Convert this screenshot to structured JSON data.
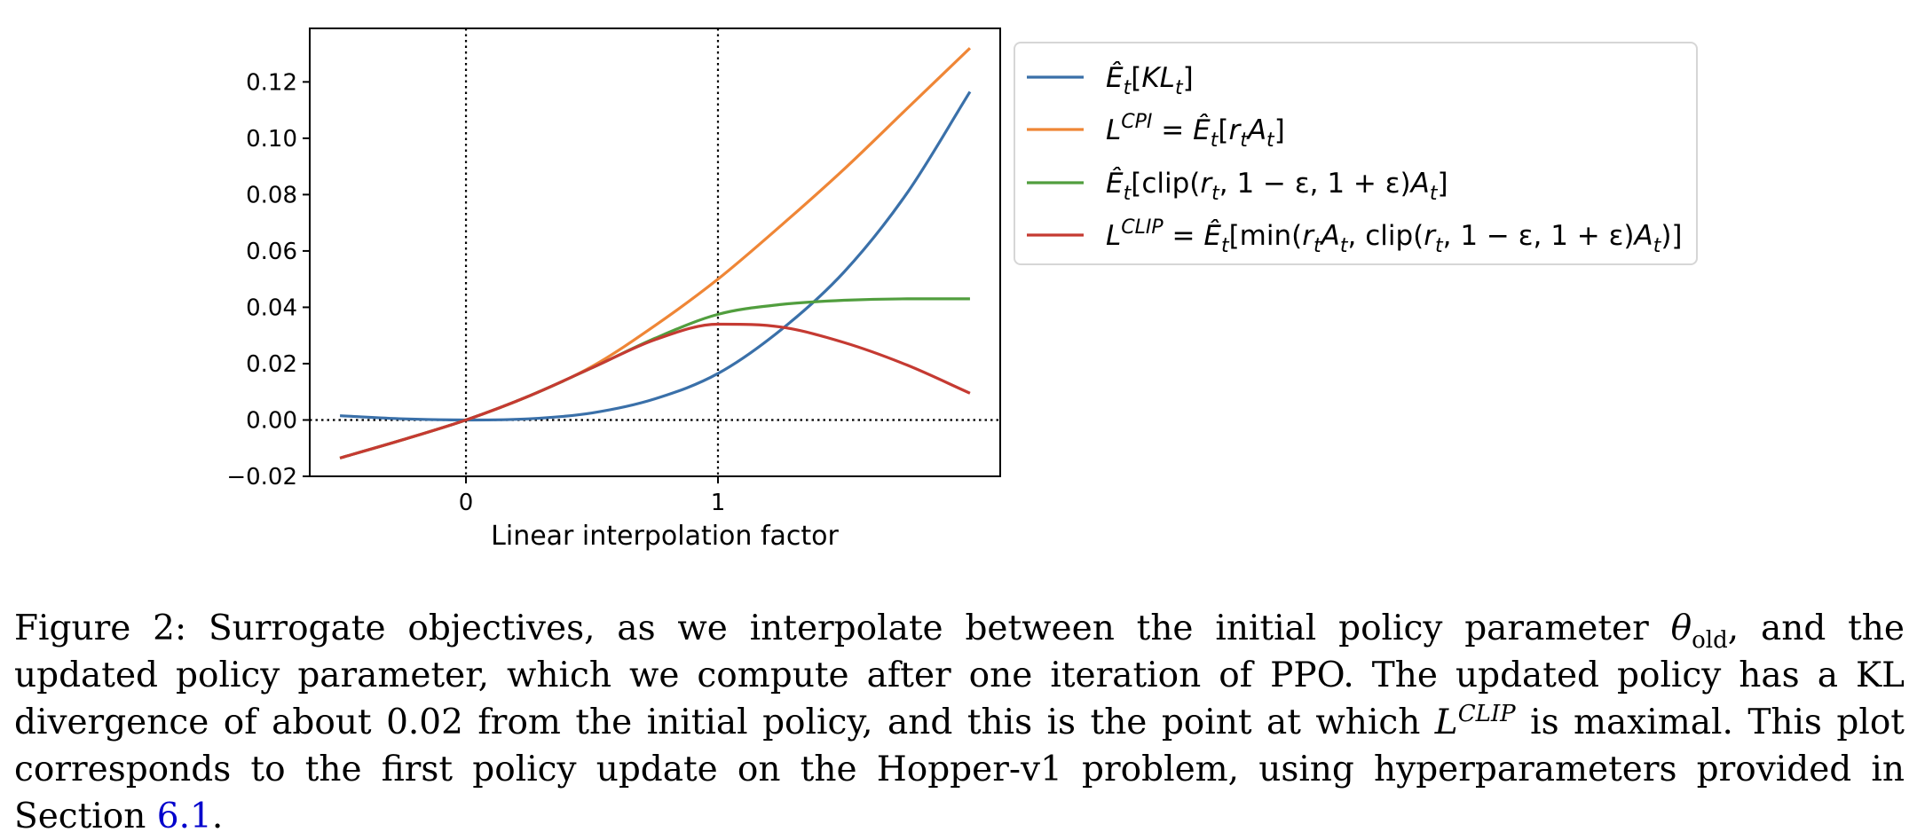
{
  "chart_data": {
    "type": "line",
    "xlabel": "Linear interpolation factor",
    "ylabel": "",
    "title": "",
    "xlim": [
      -0.62,
      2.12
    ],
    "ylim": [
      -0.02,
      0.139
    ],
    "x_ticks": [
      0,
      1
    ],
    "x_tick_labels": [
      "0",
      "1"
    ],
    "y_ticks": [
      -0.02,
      0.0,
      0.02,
      0.04,
      0.06,
      0.08,
      0.1,
      0.12
    ],
    "y_tick_labels": [
      "−0.02",
      "0.00",
      "0.02",
      "0.04",
      "0.06",
      "0.08",
      "0.10",
      "0.12"
    ],
    "reference_lines": [
      {
        "orientation": "vertical",
        "value": 0,
        "style": "dotted"
      },
      {
        "orientation": "vertical",
        "value": 1,
        "style": "dotted"
      },
      {
        "orientation": "horizontal",
        "value": 0,
        "style": "dotted"
      }
    ],
    "grid": false,
    "legend_placement": "outside-right-top",
    "x": [
      -0.5,
      -0.25,
      0.0,
      0.25,
      0.5,
      0.75,
      1.0,
      1.25,
      1.5,
      1.75,
      2.0
    ],
    "series": [
      {
        "name": "Ê_t[KL_t]",
        "color": "#3a70a9",
        "values": [
          0.0015,
          0.0004,
          0.0,
          0.0004,
          0.0025,
          0.0075,
          0.0165,
          0.032,
          0.0525,
          0.0805,
          0.1165
        ]
      },
      {
        "name": "L^CPI = Ê_t[r_t A_t]",
        "color": "#ef8636",
        "values": [
          -0.0135,
          -0.007,
          0.0,
          0.0085,
          0.019,
          0.0335,
          0.05,
          0.069,
          0.089,
          0.1105,
          0.132
        ]
      },
      {
        "name": "Ê_t[clip(r_t, 1 − ε, 1 + ε)A_t]",
        "color": "#519e3e",
        "values": [
          -0.0135,
          -0.007,
          0.0,
          0.0085,
          0.0185,
          0.029,
          0.0375,
          0.041,
          0.0425,
          0.043,
          0.043
        ]
      },
      {
        "name": "L^CLIP = Ê_t[min(r_t A_t, clip(r_t, 1 − ε, 1 + ε)A_t)]",
        "color": "#c53a32",
        "values": [
          -0.0135,
          -0.007,
          0.0,
          0.0085,
          0.0185,
          0.0285,
          0.034,
          0.033,
          0.0275,
          0.0195,
          0.0095
        ]
      }
    ]
  },
  "legend": {
    "e1_open": "[",
    "e1_kl": "KL",
    "e1_t": "t",
    "e1_close": "]",
    "e2_L": "L",
    "e2_sup": "CPI",
    "e2_eq": " = ",
    "e2_r": "r",
    "e2_A": "A",
    "e2_close": "]",
    "e3_clip": "[clip(",
    "e3_r": "r",
    "e3_mid": ", 1 − ε, 1 + ε)",
    "e3_A": "A",
    "e3_close": "]",
    "e4_L": "L",
    "e4_sup": "CLIP",
    "e4_eq": " = ",
    "e4_min": "[min(",
    "e4_r1": "r",
    "e4_A1": "A",
    "e4_clip": ", clip(",
    "e4_r2": "r",
    "e4_mid": ", 1 − ε, 1 + ε)",
    "e4_A2": "A",
    "e4_close": ")]",
    "hat_E": "Ê",
    "sub_t": "t"
  },
  "caption": {
    "lead": "Figure 2: Surrogate objectives, as we interpolate between the initial policy parameter ",
    "theta": "θ",
    "theta_sub": "old",
    "part2": ", and the updated policy parameter, which we compute after one iteration of PPO. The updated policy has a KL divergence of about 0.02 from the initial policy, and this is the point at which ",
    "L": "L",
    "L_sup": "CLIP",
    "part3": " is maximal. This plot corresponds to the first policy update on the Hopper-v1 problem, using hyperparameters provided in Section ",
    "section_ref": "6.1",
    "end": "."
  }
}
